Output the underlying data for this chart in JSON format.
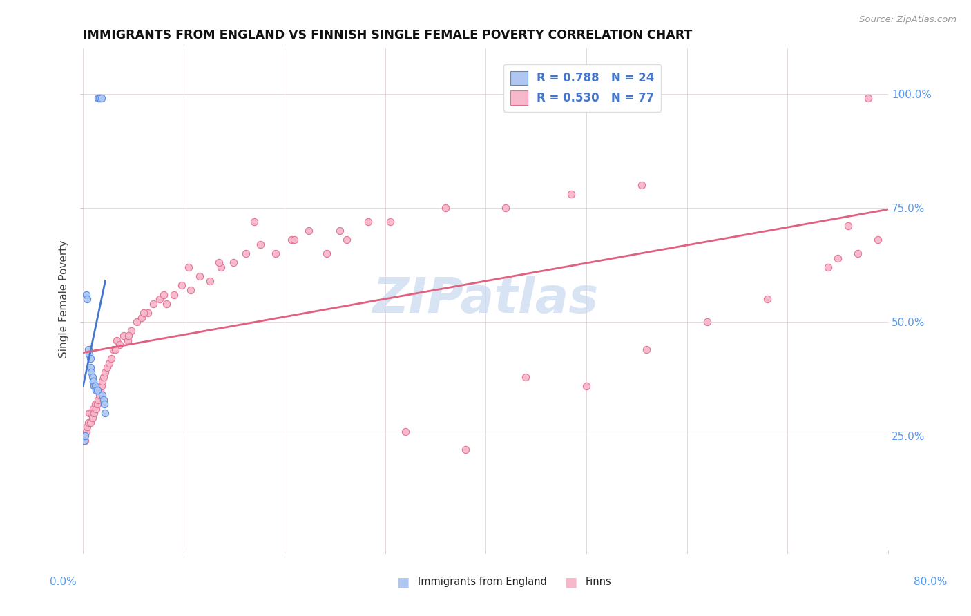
{
  "title": "IMMIGRANTS FROM ENGLAND VS FINNISH SINGLE FEMALE POVERTY CORRELATION CHART",
  "source": "Source: ZipAtlas.com",
  "ylabel": "Single Female Poverty",
  "ytick_labels": [
    "25.0%",
    "50.0%",
    "75.0%",
    "100.0%"
  ],
  "ytick_values": [
    0.25,
    0.5,
    0.75,
    1.0
  ],
  "legend_england_r": "R = 0.788",
  "legend_england_n": "N = 24",
  "legend_finns_r": "R = 0.530",
  "legend_finns_n": "N = 77",
  "england_fill_color": "#aec6f0",
  "england_edge_color": "#5588dd",
  "finns_fill_color": "#f8b8cc",
  "finns_edge_color": "#e07090",
  "england_line_color": "#4477cc",
  "finns_line_color": "#e06080",
  "watermark_color": "#c8d8ee",
  "xlim": [
    0.0,
    0.8
  ],
  "ylim": [
    0.0,
    1.1
  ],
  "england_x": [
    0.001,
    0.002,
    0.003,
    0.004,
    0.005,
    0.006,
    0.007,
    0.007,
    0.008,
    0.009,
    0.01,
    0.01,
    0.011,
    0.012,
    0.013,
    0.014,
    0.015,
    0.016,
    0.017,
    0.018,
    0.019,
    0.02,
    0.021,
    0.022
  ],
  "england_y": [
    0.24,
    0.25,
    0.56,
    0.55,
    0.44,
    0.43,
    0.42,
    0.4,
    0.39,
    0.38,
    0.37,
    0.37,
    0.36,
    0.36,
    0.35,
    0.35,
    0.99,
    0.99,
    0.99,
    0.99,
    0.34,
    0.33,
    0.32,
    0.3
  ],
  "finns_x": [
    0.002,
    0.003,
    0.004,
    0.005,
    0.006,
    0.007,
    0.008,
    0.009,
    0.01,
    0.011,
    0.012,
    0.013,
    0.014,
    0.015,
    0.016,
    0.017,
    0.018,
    0.019,
    0.02,
    0.022,
    0.024,
    0.026,
    0.028,
    0.03,
    0.033,
    0.036,
    0.04,
    0.044,
    0.048,
    0.053,
    0.058,
    0.064,
    0.07,
    0.076,
    0.083,
    0.09,
    0.098,
    0.107,
    0.116,
    0.126,
    0.137,
    0.149,
    0.162,
    0.176,
    0.191,
    0.207,
    0.224,
    0.242,
    0.262,
    0.283,
    0.032,
    0.045,
    0.06,
    0.08,
    0.105,
    0.135,
    0.17,
    0.21,
    0.255,
    0.305,
    0.36,
    0.42,
    0.485,
    0.555,
    0.32,
    0.38,
    0.44,
    0.5,
    0.56,
    0.62,
    0.68,
    0.74,
    0.79,
    0.75,
    0.76,
    0.77,
    0.78
  ],
  "finns_y": [
    0.24,
    0.26,
    0.27,
    0.28,
    0.3,
    0.28,
    0.3,
    0.29,
    0.31,
    0.3,
    0.32,
    0.31,
    0.32,
    0.33,
    0.34,
    0.35,
    0.36,
    0.37,
    0.38,
    0.39,
    0.4,
    0.41,
    0.42,
    0.44,
    0.46,
    0.45,
    0.47,
    0.46,
    0.48,
    0.5,
    0.51,
    0.52,
    0.54,
    0.55,
    0.54,
    0.56,
    0.58,
    0.57,
    0.6,
    0.59,
    0.62,
    0.63,
    0.65,
    0.67,
    0.65,
    0.68,
    0.7,
    0.65,
    0.68,
    0.72,
    0.44,
    0.47,
    0.52,
    0.56,
    0.62,
    0.63,
    0.72,
    0.68,
    0.7,
    0.72,
    0.75,
    0.75,
    0.78,
    0.8,
    0.26,
    0.22,
    0.38,
    0.36,
    0.44,
    0.5,
    0.55,
    0.62,
    0.68,
    0.64,
    0.71,
    0.65,
    0.99
  ],
  "eng_line_x0": 0.0,
  "eng_line_x1": 0.022,
  "finn_line_x0": 0.0,
  "finn_line_x1": 0.8
}
